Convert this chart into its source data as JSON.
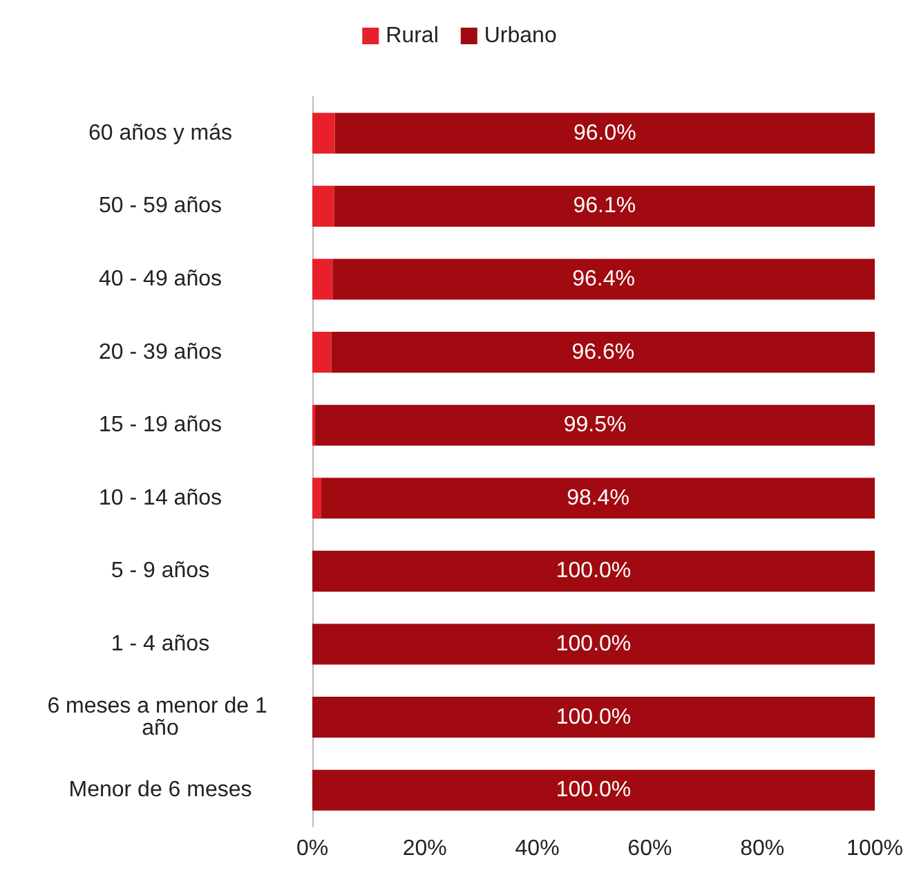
{
  "chart_data": {
    "type": "bar",
    "orientation": "horizontal",
    "stacked": true,
    "categories": [
      "60 años y más",
      "50 - 59 años",
      "40 - 49 años",
      "20 - 39 años",
      "15 - 19 años",
      "10 - 14 años",
      "5 - 9 años",
      "1 - 4 años",
      "6 meses a menor de 1 año",
      "Menor de 6 meses"
    ],
    "series": [
      {
        "name": "Rural",
        "color": "#e8202a",
        "values": [
          4.0,
          3.9,
          3.6,
          3.4,
          0.5,
          1.6,
          0,
          0,
          0,
          0
        ]
      },
      {
        "name": "Urbano",
        "color": "#a00a10",
        "values": [
          96.0,
          96.1,
          96.4,
          96.6,
          99.5,
          98.4,
          100,
          100,
          100,
          100
        ],
        "value_labels": [
          "96.0%",
          "96.1%",
          "96.4%",
          "96.6%",
          "99.5%",
          "98.4%",
          "100.0%",
          "100.0%",
          "100.0%",
          "100.0%"
        ]
      }
    ],
    "xlim": [
      0,
      100
    ],
    "xticks": [
      {
        "value": 0,
        "label": "0%"
      },
      {
        "value": 20,
        "label": "20%"
      },
      {
        "value": 40,
        "label": "40%"
      },
      {
        "value": 60,
        "label": "60%"
      },
      {
        "value": 80,
        "label": "80%"
      },
      {
        "value": 100,
        "label": "100%"
      }
    ],
    "grid": false,
    "legend": "top"
  }
}
